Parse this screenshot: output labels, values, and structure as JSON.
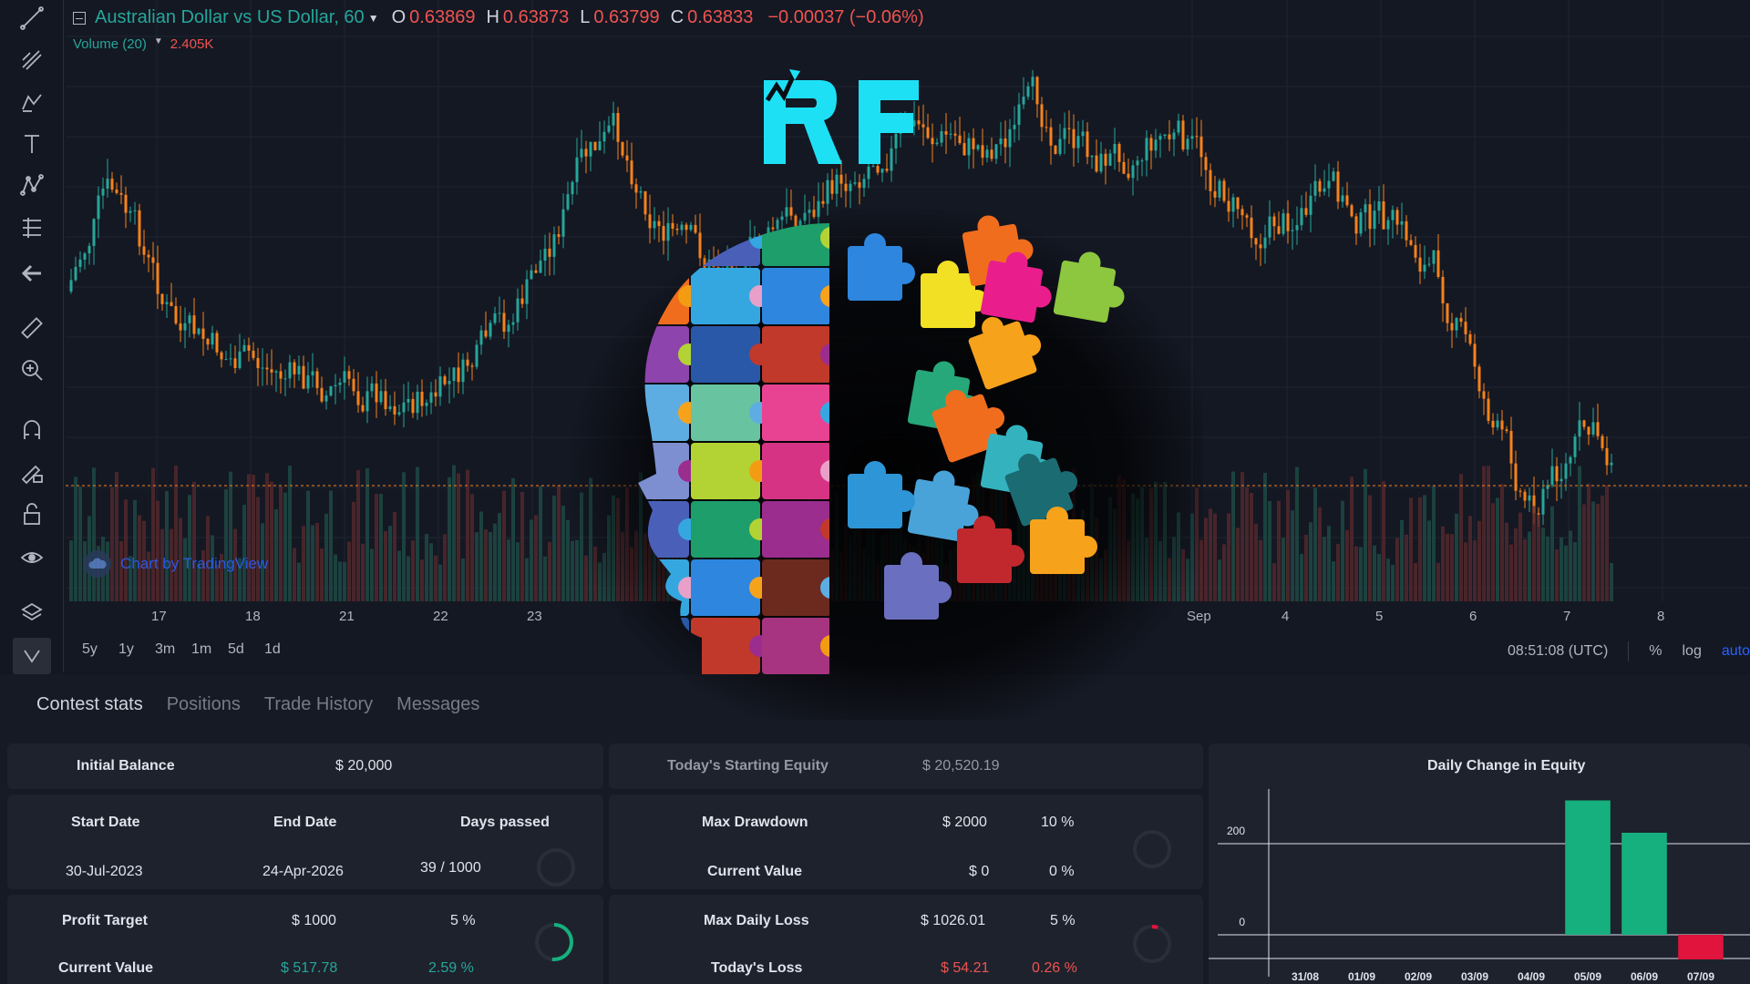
{
  "legend": {
    "title": "Australian Dollar vs US Dollar, 60",
    "o_label": "O",
    "o_value": "0.63869",
    "h_label": "H",
    "h_value": "0.63873",
    "l_label": "L",
    "l_value": "0.63799",
    "c_label": "C",
    "c_value": "0.63833",
    "change": "−0.00037 (−0.06%)"
  },
  "volume": {
    "label": "Volume (20)",
    "value": "2.405K"
  },
  "credit": "Chart by TradingView",
  "x_ticks": [
    "17",
    "18",
    "21",
    "22",
    "23",
    "Sep",
    "4",
    "5",
    "6",
    "7",
    "8"
  ],
  "ranges": [
    "5y",
    "1y",
    "3m",
    "1m",
    "5d",
    "1d"
  ],
  "time": "08:51:08 (UTC)",
  "scale_buttons": {
    "percent": "%",
    "log": "log",
    "auto": "auto"
  },
  "logo_text": "RF",
  "tabs": [
    "Contest stats",
    "Positions",
    "Trade History",
    "Messages"
  ],
  "stats": {
    "initial_balance_label": "Initial Balance",
    "initial_balance": "$ 20,000",
    "start_label": "Start Date",
    "start": "30-Jul-2023",
    "end_label": "End Date",
    "end": "24-Apr-2026",
    "days_label": "Days passed",
    "days": "39 / 1000",
    "profit_target_label": "Profit Target",
    "profit_target": "$ 1000",
    "profit_target_pct": "5 %",
    "current_value_label": "Current Value",
    "current_value": "$ 517.78",
    "current_value_pct": "2.59 %",
    "starting_equity_label": "Today's Starting Equity",
    "starting_equity": "$ 20,520.19",
    "max_drawdown_label": "Max Drawdown",
    "max_drawdown": "$ 2000",
    "max_drawdown_pct": "10 %",
    "dd_current_label": "Current Value",
    "dd_current": "$ 0",
    "dd_current_pct": "0 %",
    "max_daily_loss_label": "Max Daily Loss",
    "max_daily_loss": "$ 1026.01",
    "max_daily_loss_pct": "5 %",
    "today_loss_label": "Today's Loss",
    "today_loss": "$ 54.21",
    "today_loss_pct": "0.26 %",
    "profit_progress": 0.518,
    "daily_loss_progress": 0.053
  },
  "chart_data": {
    "type": "bar",
    "title": "Daily Change in Equity",
    "categories": [
      "31/08",
      "01/09",
      "02/09",
      "03/09",
      "04/09",
      "05/09",
      "06/09",
      "07/09"
    ],
    "values": [
      0,
      0,
      0,
      0,
      0,
      295,
      224,
      -54
    ],
    "yticks": [
      0,
      200
    ],
    "ylim": [
      -60,
      320
    ],
    "colors": {
      "positive": "#16b07e",
      "negative": "#e0143c"
    }
  }
}
